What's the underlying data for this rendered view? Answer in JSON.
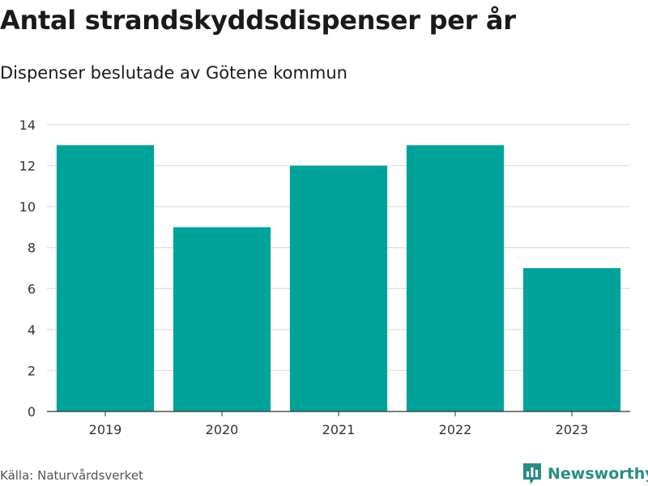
{
  "chart_data": {
    "type": "bar",
    "title": "Antal strandskyddsdispenser per år",
    "subtitle": "Dispenser beslutade av Götene kommun",
    "categories": [
      "2019",
      "2020",
      "2021",
      "2022",
      "2023"
    ],
    "values": [
      13,
      9,
      12,
      13,
      7
    ],
    "ylim": [
      0,
      14
    ],
    "yticks": [
      0,
      2,
      4,
      6,
      8,
      10,
      12,
      14
    ],
    "xlabel": "",
    "ylabel": "",
    "grid": true,
    "bar_color": "#00a39a"
  },
  "footer": {
    "source": "Källa: Naturvårdsverket",
    "brand": "Newsworthy",
    "brand_icon": "bar-chart-logo-icon",
    "brand_color": "#2a8c84"
  }
}
